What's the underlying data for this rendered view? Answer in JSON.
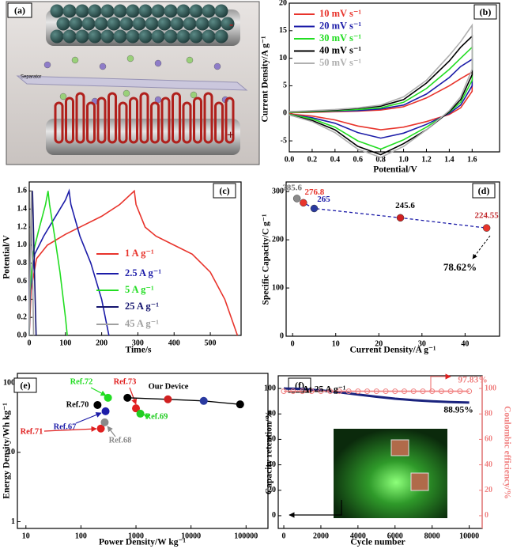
{
  "panel_a": {
    "label": "(a)",
    "separator": "Separator",
    "minus": "-",
    "plus": "+"
  },
  "chart_data": [
    {
      "panel_label": "(b)",
      "type": "line",
      "x_label": "Potential/V",
      "y_label": "Current Density/A g⁻¹",
      "xlim": [
        0,
        1.84
      ],
      "ylim": [
        -7,
        20
      ],
      "xticks": [
        {
          "value": 0,
          "label": "0.0"
        },
        0.2,
        0.4,
        0.6,
        0.8,
        {
          "value": 1,
          "label": "1.0"
        },
        1.2,
        1.4,
        1.6
      ],
      "yticks": [
        -5,
        0,
        5,
        10,
        15,
        20
      ],
      "legend": "upper left",
      "x": [
        0,
        0.2,
        0.4,
        0.6,
        0.8,
        1.0,
        1.2,
        1.4,
        1.5,
        1.6,
        1.6,
        1.5,
        1.4,
        1.2,
        1.0,
        0.8,
        0.6,
        0.4,
        0.2,
        0
      ],
      "series": [
        {
          "name": "10 mV s⁻¹",
          "color": "#e8342c",
          "values": [
            0.1,
            0.2,
            0.3,
            0.4,
            0.6,
            1.2,
            2.8,
            5,
            6.3,
            7.5,
            4,
            1,
            -0.2,
            -1.5,
            -2.5,
            -3,
            -2.3,
            -1.2,
            -0.5,
            -0.1
          ]
        },
        {
          "name": "20 mV s⁻¹",
          "color": "#1c1ca8",
          "values": [
            0.2,
            0.3,
            0.4,
            0.5,
            0.8,
            1.5,
            3.5,
            6.5,
            8.5,
            9.8,
            5,
            1.5,
            0,
            -2,
            -3.6,
            -4.5,
            -3.5,
            -1.8,
            -0.8,
            -0.2
          ]
        },
        {
          "name": "30 mV s⁻¹",
          "color": "#22dd22",
          "values": [
            0.2,
            0.3,
            0.5,
            0.7,
            1.0,
            2.0,
            4.5,
            8,
            10,
            12,
            6,
            2,
            0.2,
            -2.5,
            -4.8,
            -6.5,
            -5,
            -2.5,
            -1,
            -0.2
          ]
        },
        {
          "name": "40 mV s⁻¹",
          "color": "#000000",
          "values": [
            0.3,
            0.4,
            0.6,
            0.9,
            1.3,
            2.5,
            5.5,
            9.5,
            12,
            14,
            7,
            2.5,
            0.3,
            -3,
            -5.5,
            -7.5,
            -6,
            -3,
            -1.3,
            -0.3
          ]
        },
        {
          "name": "50 mV s⁻¹",
          "color": "#b0b0b0",
          "values": [
            0.3,
            0.5,
            0.7,
            1.0,
            1.5,
            3,
            6,
            10.5,
            13,
            16,
            8,
            3,
            0.5,
            -3,
            -6,
            -8,
            -6.5,
            -3.5,
            -1.5,
            -0.3
          ]
        }
      ]
    },
    {
      "panel_label": "(c)",
      "type": "line",
      "x_label": "Time/s",
      "y_label": "Potential/V",
      "xlim": [
        0,
        585
      ],
      "ylim": [
        0,
        1.7
      ],
      "xticks": [
        0,
        100,
        200,
        300,
        400,
        500
      ],
      "yticks": [
        {
          "value": 0,
          "label": "0.0"
        },
        0.2,
        0.4,
        0.6,
        0.8,
        {
          "value": 1,
          "label": "1.0"
        },
        1.2,
        1.4,
        1.6
      ],
      "legend": "center right",
      "series": [
        {
          "name": "1 A g⁻¹",
          "color": "#e8342c",
          "x": [
            0,
            5,
            20,
            50,
            100,
            150,
            200,
            250,
            290,
            295,
            320,
            350,
            400,
            450,
            500,
            540,
            575
          ],
          "values": [
            0,
            0.5,
            0.85,
            1.0,
            1.12,
            1.22,
            1.32,
            1.45,
            1.6,
            1.45,
            1.2,
            1.1,
            1.0,
            0.9,
            0.7,
            0.4,
            0
          ]
        },
        {
          "name": "2.5 A g⁻¹",
          "color": "#1c1ca8",
          "x": [
            0,
            3,
            15,
            40,
            70,
            100,
            110,
            115,
            140,
            170,
            200,
            220
          ],
          "values": [
            0,
            0.5,
            0.9,
            1.1,
            1.3,
            1.5,
            1.6,
            1.45,
            1.1,
            0.8,
            0.4,
            0
          ]
        },
        {
          "name": "5 A g⁻¹",
          "color": "#22dd22",
          "x": [
            0,
            2,
            10,
            25,
            45,
            52,
            56,
            70,
            85,
            100,
            105
          ],
          "values": [
            0,
            0.5,
            0.9,
            1.15,
            1.45,
            1.6,
            1.45,
            1.1,
            0.7,
            0.2,
            0
          ]
        },
        {
          "name": "25 A g⁻¹",
          "color": "#14146e",
          "x": [
            0,
            1,
            5,
            9,
            11,
            15,
            19
          ],
          "values": [
            0,
            0.6,
            1.2,
            1.6,
            1.3,
            0.6,
            0
          ]
        },
        {
          "name": "45 A g⁻¹",
          "color": "#a0a0a0",
          "x": [
            0,
            3,
            6,
            7,
            10,
            12
          ],
          "values": [
            0,
            1.0,
            1.6,
            1.2,
            0.5,
            0
          ]
        }
      ]
    },
    {
      "panel_label": "(d)",
      "type": "scatter",
      "x_label": "Current Density/A g⁻¹",
      "y_label": "Specific Capacity/C g⁻¹",
      "xlim": [
        -1.5,
        48
      ],
      "ylim": [
        0,
        320
      ],
      "xticks": [
        0,
        10,
        20,
        30,
        40
      ],
      "yticks": [
        0,
        100,
        200,
        300
      ],
      "x": [
        1,
        2.5,
        5,
        25,
        45
      ],
      "values": [
        285.6,
        276.8,
        265,
        245.6,
        224.55
      ],
      "point_colors": [
        "#8a8a8a",
        "#e8342c",
        "#2a3aa0",
        "#d02020",
        "#e8342c"
      ],
      "label_colors": [
        "#707070",
        "#e8342c",
        "#1c1ca8",
        "#000000",
        "#c0282c"
      ],
      "line_color": "#1c1ca8",
      "line_style": "dashed",
      "annotation": "78.62%"
    },
    {
      "panel_label": "(e)",
      "type": "scatter",
      "x_label": "Power Density/W kg⁻¹",
      "y_label": "Energy Density/Wh kg⁻¹",
      "log_x": true,
      "log_y": true,
      "xlim": [
        7,
        250000
      ],
      "ylim": [
        0.8,
        137
      ],
      "xticks": [
        10,
        100,
        1000,
        10000,
        100000
      ],
      "yticks": [
        1,
        10,
        100
      ],
      "series": [
        {
          "name": "Ref.70",
          "color": "#000000",
          "x": [
            200
          ],
          "values": [
            48
          ]
        },
        {
          "name": "Ref.72",
          "color": "#22dd22",
          "x": [
            310
          ],
          "values": [
            61
          ]
        },
        {
          "name": "Ref.73",
          "color": "#e02020",
          "x": [
            1000
          ],
          "values": [
            43
          ]
        },
        {
          "name": "Ref.69",
          "color": "#22cc22",
          "x": [
            1200
          ],
          "values": [
            36
          ]
        },
        {
          "name": "Ref.67",
          "color": "#1c1ca8",
          "x": [
            280
          ],
          "values": [
            39
          ]
        },
        {
          "name": "Ref.71",
          "color": "#e02020",
          "x": [
            230
          ],
          "values": [
            22
          ]
        },
        {
          "name": "Ref.68",
          "color": "#8a8a8a",
          "x": [
            270
          ],
          "values": [
            27
          ]
        },
        {
          "name": "Our Device",
          "color": "#000000",
          "line": true,
          "x": [
            700,
            3800,
            17000,
            78000
          ],
          "values": [
            61,
            58,
            55,
            49
          ],
          "marker_colors": [
            "#000000",
            "#d02020",
            "#2a3aa0",
            "#000000"
          ]
        }
      ]
    },
    {
      "panel_label": "(f)",
      "type": "line",
      "x_label": "Cycle number",
      "y_label": "Capacity retention/%",
      "y2_label": "Coulombic efficiency/%",
      "xlim": [
        -300,
        10700
      ],
      "ylim": [
        -10,
        110
      ],
      "y2lim": [
        -10,
        110
      ],
      "xticks": [
        0,
        2000,
        4000,
        6000,
        8000,
        10000
      ],
      "yticks": [
        0,
        20,
        40,
        60,
        80,
        100
      ],
      "y2ticks": [
        0,
        20,
        40,
        60,
        80,
        100
      ],
      "y2_color": "#f08080",
      "annotations": [
        "At 25 A g⁻¹",
        "97.83%",
        "88.95%"
      ],
      "series": [
        {
          "color": "#1a237e",
          "x": [
            0,
            1000,
            2000,
            3000,
            4000,
            5000,
            6000,
            7000,
            8000,
            9000,
            10000
          ],
          "values": [
            100,
            99.6,
            98.5,
            97,
            95.2,
            93.5,
            92,
            90.8,
            89.9,
            89.3,
            88.95
          ]
        },
        {
          "color": "#f08080",
          "axis": "y2",
          "markers": true,
          "x": [
            0,
            500,
            1000,
            1500,
            2000,
            2500,
            3000,
            3500,
            4000,
            4500,
            5000,
            5500,
            6000,
            6500,
            7000,
            7500,
            8000,
            8500,
            9000,
            9500,
            10000
          ],
          "values": [
            97.83,
            97.83,
            97.83,
            97.83,
            97.83,
            97.83,
            97.83,
            97.83,
            97.83,
            97.83,
            97.83,
            97.83,
            97.83,
            97.83,
            97.83,
            97.83,
            97.83,
            97.83,
            97.83,
            97.83,
            97.83
          ]
        }
      ]
    }
  ]
}
